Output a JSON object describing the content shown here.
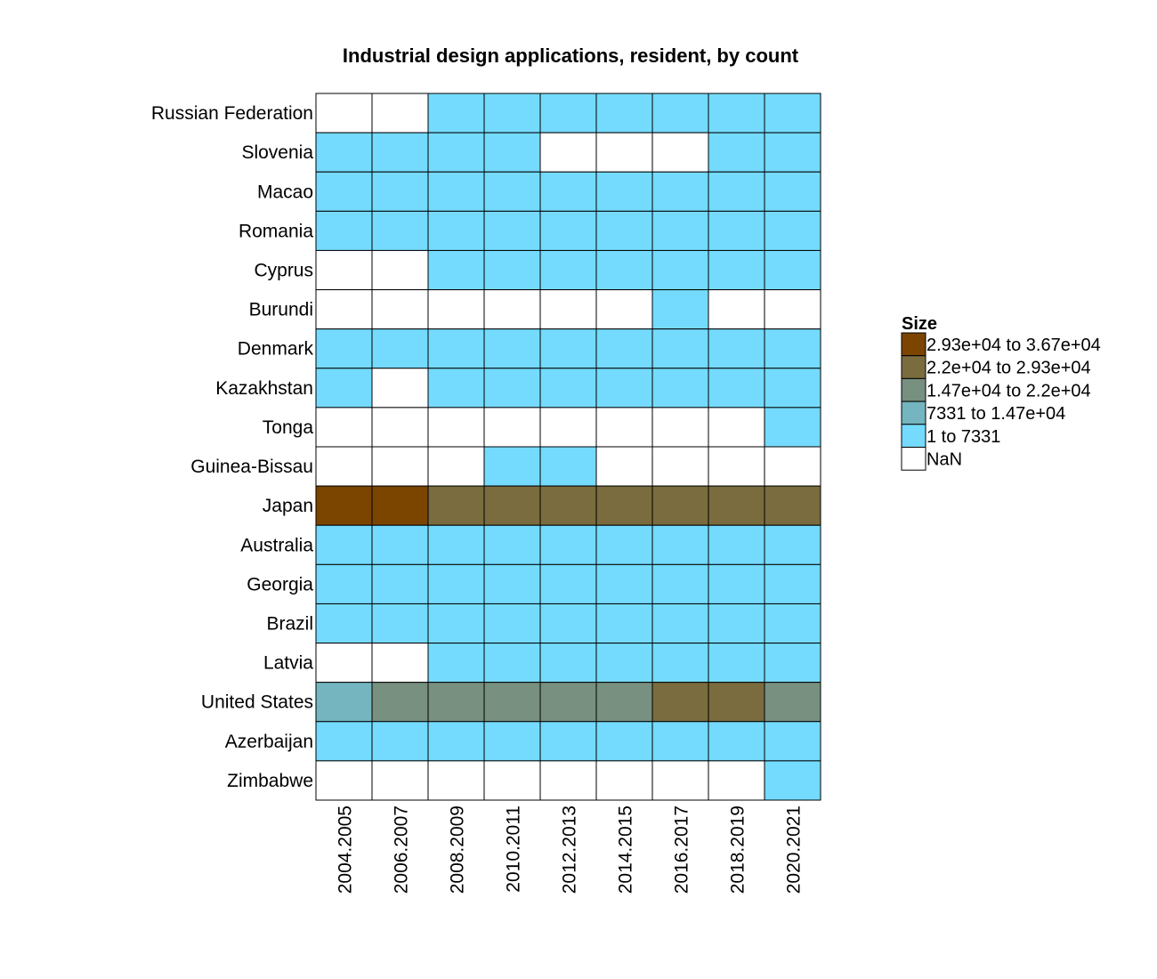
{
  "chart_data": {
    "type": "heatmap",
    "title": "Industrial design applications, resident, by count",
    "x": [
      "2004.2005",
      "2006.2007",
      "2008.2009",
      "2010.2011",
      "2012.2013",
      "2014.2015",
      "2016.2017",
      "2018.2019",
      "2020.2021"
    ],
    "y": [
      "Russian Federation",
      "Slovenia",
      "Macao",
      "Romania",
      "Cyprus",
      "Burundi",
      "Denmark",
      "Kazakhstan",
      "Tonga",
      "Guinea-Bissau",
      "Japan",
      "Australia",
      "Georgia",
      "Brazil",
      "Latvia",
      "United States",
      "Azerbaijan",
      "Zimbabwe"
    ],
    "legend": {
      "title": "Size",
      "placement": "right",
      "bins": [
        {
          "label": "2.93e+04 to 3.67e+04",
          "color": "#7b4500"
        },
        {
          "label": "2.2e+04 to 2.93e+04",
          "color": "#7a6c3e"
        },
        {
          "label": "1.47e+04 to 2.2e+04",
          "color": "#779080"
        },
        {
          "label": "7331 to 1.47e+04",
          "color": "#74b5c0"
        },
        {
          "label": "1 to 7331",
          "color": "#74dbfe"
        },
        {
          "label": "NaN",
          "color": "#ffffff"
        }
      ]
    },
    "values": [
      [
        "NaN",
        "NaN",
        "1 to 7331",
        "1 to 7331",
        "1 to 7331",
        "1 to 7331",
        "1 to 7331",
        "1 to 7331",
        "1 to 7331"
      ],
      [
        "1 to 7331",
        "1 to 7331",
        "1 to 7331",
        "1 to 7331",
        "NaN",
        "NaN",
        "NaN",
        "1 to 7331",
        "1 to 7331"
      ],
      [
        "1 to 7331",
        "1 to 7331",
        "1 to 7331",
        "1 to 7331",
        "1 to 7331",
        "1 to 7331",
        "1 to 7331",
        "1 to 7331",
        "1 to 7331"
      ],
      [
        "1 to 7331",
        "1 to 7331",
        "1 to 7331",
        "1 to 7331",
        "1 to 7331",
        "1 to 7331",
        "1 to 7331",
        "1 to 7331",
        "1 to 7331"
      ],
      [
        "NaN",
        "NaN",
        "1 to 7331",
        "1 to 7331",
        "1 to 7331",
        "1 to 7331",
        "1 to 7331",
        "1 to 7331",
        "1 to 7331"
      ],
      [
        "NaN",
        "NaN",
        "NaN",
        "NaN",
        "NaN",
        "NaN",
        "1 to 7331",
        "NaN",
        "NaN"
      ],
      [
        "1 to 7331",
        "1 to 7331",
        "1 to 7331",
        "1 to 7331",
        "1 to 7331",
        "1 to 7331",
        "1 to 7331",
        "1 to 7331",
        "1 to 7331"
      ],
      [
        "1 to 7331",
        "NaN",
        "1 to 7331",
        "1 to 7331",
        "1 to 7331",
        "1 to 7331",
        "1 to 7331",
        "1 to 7331",
        "1 to 7331"
      ],
      [
        "NaN",
        "NaN",
        "NaN",
        "NaN",
        "NaN",
        "NaN",
        "NaN",
        "NaN",
        "1 to 7331"
      ],
      [
        "NaN",
        "NaN",
        "NaN",
        "1 to 7331",
        "1 to 7331",
        "NaN",
        "NaN",
        "NaN",
        "NaN"
      ],
      [
        "2.93e+04 to 3.67e+04",
        "2.93e+04 to 3.67e+04",
        "2.2e+04 to 2.93e+04",
        "2.2e+04 to 2.93e+04",
        "2.2e+04 to 2.93e+04",
        "2.2e+04 to 2.93e+04",
        "2.2e+04 to 2.93e+04",
        "2.2e+04 to 2.93e+04",
        "2.2e+04 to 2.93e+04"
      ],
      [
        "1 to 7331",
        "1 to 7331",
        "1 to 7331",
        "1 to 7331",
        "1 to 7331",
        "1 to 7331",
        "1 to 7331",
        "1 to 7331",
        "1 to 7331"
      ],
      [
        "1 to 7331",
        "1 to 7331",
        "1 to 7331",
        "1 to 7331",
        "1 to 7331",
        "1 to 7331",
        "1 to 7331",
        "1 to 7331",
        "1 to 7331"
      ],
      [
        "1 to 7331",
        "1 to 7331",
        "1 to 7331",
        "1 to 7331",
        "1 to 7331",
        "1 to 7331",
        "1 to 7331",
        "1 to 7331",
        "1 to 7331"
      ],
      [
        "NaN",
        "NaN",
        "1 to 7331",
        "1 to 7331",
        "1 to 7331",
        "1 to 7331",
        "1 to 7331",
        "1 to 7331",
        "1 to 7331"
      ],
      [
        "7331 to 1.47e+04",
        "1.47e+04 to 2.2e+04",
        "1.47e+04 to 2.2e+04",
        "1.47e+04 to 2.2e+04",
        "1.47e+04 to 2.2e+04",
        "1.47e+04 to 2.2e+04",
        "2.2e+04 to 2.93e+04",
        "2.2e+04 to 2.93e+04",
        "1.47e+04 to 2.2e+04"
      ],
      [
        "1 to 7331",
        "1 to 7331",
        "1 to 7331",
        "1 to 7331",
        "1 to 7331",
        "1 to 7331",
        "1 to 7331",
        "1 to 7331",
        "1 to 7331"
      ],
      [
        "NaN",
        "NaN",
        "NaN",
        "NaN",
        "NaN",
        "NaN",
        "NaN",
        "NaN",
        "1 to 7331"
      ]
    ]
  }
}
